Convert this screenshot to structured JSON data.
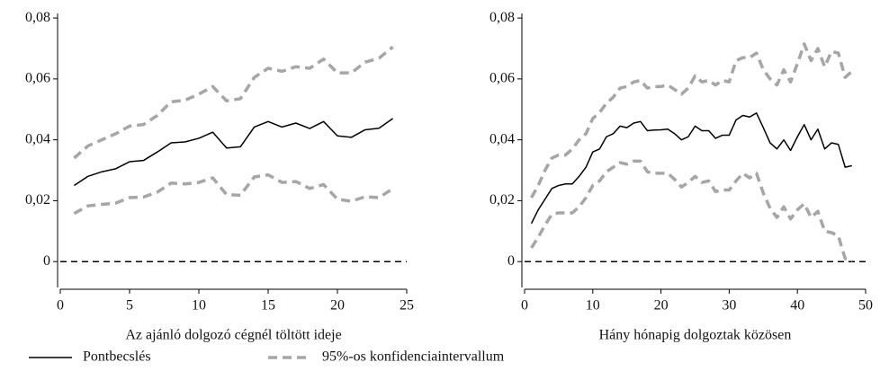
{
  "chart_data": [
    {
      "type": "line",
      "xlabel": "Az ajánló dolgozó cégnél töltött ideje",
      "x": [
        1,
        2,
        3,
        4,
        5,
        6,
        7,
        8,
        9,
        10,
        11,
        12,
        13,
        14,
        15,
        16,
        17,
        18,
        19,
        20,
        21,
        22,
        23,
        24
      ],
      "series": [
        {
          "name": "Pontbecslés",
          "color": "#000000",
          "dash": "solid",
          "values": [
            0.025,
            0.028,
            0.0295,
            0.0305,
            0.0328,
            0.0332,
            0.036,
            0.039,
            0.0393,
            0.0405,
            0.0425,
            0.0373,
            0.0377,
            0.0442,
            0.046,
            0.0442,
            0.0455,
            0.0437,
            0.046,
            0.0413,
            0.0408,
            0.0433,
            0.0438,
            0.047
          ]
        },
        {
          "name": "95%-os konfidenciaintervallum",
          "color": "#a6a6a6",
          "dash": "dashed",
          "upper": [
            0.034,
            0.038,
            0.04,
            0.042,
            0.0445,
            0.045,
            0.048,
            0.0525,
            0.053,
            0.055,
            0.0575,
            0.0528,
            0.0535,
            0.0605,
            0.0635,
            0.0625,
            0.064,
            0.0635,
            0.0665,
            0.062,
            0.062,
            0.0655,
            0.0668,
            0.0705
          ],
          "lower": [
            0.0158,
            0.0183,
            0.0188,
            0.0192,
            0.021,
            0.0212,
            0.0228,
            0.0258,
            0.0255,
            0.026,
            0.0275,
            0.022,
            0.0218,
            0.0278,
            0.0285,
            0.026,
            0.0263,
            0.024,
            0.0253,
            0.0205,
            0.0198,
            0.0213,
            0.021,
            0.024
          ]
        }
      ],
      "xlim": [
        0,
        25
      ],
      "xticks": [
        0,
        5,
        10,
        15,
        20,
        25
      ],
      "ylim": [
        -0.0085,
        0.0815
      ],
      "yticks": [
        0,
        {
          "value": 0.02,
          "label": "0,02"
        },
        {
          "value": 0.04,
          "label": "0,04"
        },
        {
          "value": 0.06,
          "label": "0,06"
        },
        {
          "value": 0.08,
          "label": "0,08"
        }
      ],
      "hline": 0
    },
    {
      "type": "line",
      "xlabel": "Hány hónapig dolgoztak közösen",
      "x": [
        1,
        2,
        3,
        4,
        5,
        6,
        7,
        8,
        9,
        10,
        11,
        12,
        13,
        14,
        15,
        16,
        17,
        18,
        19,
        20,
        21,
        22,
        23,
        24,
        25,
        26,
        27,
        28,
        29,
        30,
        31,
        32,
        33,
        34,
        35,
        36,
        37,
        38,
        39,
        40,
        41,
        42,
        43,
        44,
        45,
        46,
        47,
        48
      ],
      "series": [
        {
          "color": "#000000",
          "dash": "solid",
          "values": [
            0.0125,
            0.017,
            0.0205,
            0.024,
            0.025,
            0.0255,
            0.0255,
            0.028,
            0.031,
            0.036,
            0.037,
            0.041,
            0.042,
            0.0445,
            0.044,
            0.0455,
            0.046,
            0.043,
            0.0432,
            0.0433,
            0.0435,
            0.042,
            0.04,
            0.041,
            0.0445,
            0.043,
            0.043,
            0.0405,
            0.0415,
            0.0415,
            0.0465,
            0.048,
            0.0475,
            0.0488,
            0.044,
            0.039,
            0.037,
            0.04,
            0.0365,
            0.041,
            0.045,
            0.04,
            0.0435,
            0.037,
            0.039,
            0.0385,
            0.031,
            0.0315
          ]
        },
        {
          "color": "#a6a6a6",
          "dash": "dashed",
          "upper": [
            0.021,
            0.025,
            0.03,
            0.034,
            0.035,
            0.035,
            0.037,
            0.04,
            0.042,
            0.047,
            0.049,
            0.052,
            0.054,
            0.057,
            0.0575,
            0.059,
            0.0595,
            0.057,
            0.0575,
            0.0575,
            0.058,
            0.0565,
            0.055,
            0.057,
            0.061,
            0.059,
            0.0595,
            0.058,
            0.0595,
            0.059,
            0.066,
            0.067,
            0.067,
            0.0685,
            0.063,
            0.06,
            0.058,
            0.063,
            0.059,
            0.065,
            0.0715,
            0.066,
            0.07,
            0.064,
            0.069,
            0.0685,
            0.0605,
            0.0625
          ],
          "lower": [
            0.0045,
            0.008,
            0.012,
            0.0155,
            0.016,
            0.016,
            0.016,
            0.018,
            0.021,
            0.025,
            0.0265,
            0.0295,
            0.031,
            0.0325,
            0.032,
            0.033,
            0.033,
            0.0295,
            0.029,
            0.029,
            0.029,
            0.027,
            0.0245,
            0.026,
            0.028,
            0.026,
            0.0265,
            0.023,
            0.0235,
            0.0235,
            0.0265,
            0.029,
            0.0275,
            0.029,
            0.0225,
            0.0175,
            0.0145,
            0.018,
            0.014,
            0.017,
            0.019,
            0.0145,
            0.0165,
            0.01,
            0.0095,
            0.0085,
            0.001,
            0
          ]
        }
      ],
      "xlim": [
        0,
        50
      ],
      "xticks": [
        0,
        10,
        20,
        30,
        40,
        50
      ],
      "ylim": [
        -0.0085,
        0.0815
      ],
      "yticks": [
        0,
        {
          "value": 0.02,
          "label": "0,02"
        },
        {
          "value": 0.04,
          "label": "0,04"
        },
        {
          "value": 0.06,
          "label": "0,06"
        },
        {
          "value": 0.08,
          "label": "0,08"
        }
      ],
      "hline": 0
    }
  ]
}
